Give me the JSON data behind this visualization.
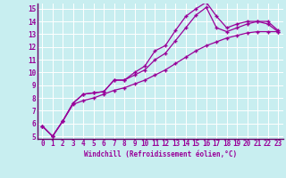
{
  "xlabel": "Windchill (Refroidissement éolien,°C)",
  "bg_color": "#c8eef0",
  "line_color": "#990099",
  "axis_line_color": "#660066",
  "grid_color": "#ffffff",
  "xlim": [
    -0.5,
    23.5
  ],
  "ylim": [
    4.8,
    15.4
  ],
  "yticks": [
    5,
    6,
    7,
    8,
    9,
    10,
    11,
    12,
    13,
    14,
    15
  ],
  "xticks": [
    0,
    1,
    2,
    3,
    4,
    5,
    6,
    7,
    8,
    9,
    10,
    11,
    12,
    13,
    14,
    15,
    16,
    17,
    18,
    19,
    20,
    21,
    22,
    23
  ],
  "series1_x": [
    0,
    1,
    2,
    3,
    4,
    5,
    6,
    7,
    8,
    9,
    10,
    11,
    12,
    13,
    14,
    15,
    16,
    17,
    18,
    19,
    20,
    21,
    22,
    23
  ],
  "series1_y": [
    5.8,
    5.0,
    6.2,
    7.6,
    8.3,
    8.4,
    8.5,
    9.4,
    9.4,
    10.0,
    10.5,
    11.7,
    12.1,
    13.3,
    14.4,
    15.0,
    15.5,
    14.4,
    13.5,
    13.8,
    14.0,
    14.0,
    14.0,
    13.3
  ],
  "series2_x": [
    0,
    1,
    2,
    3,
    4,
    5,
    6,
    7,
    8,
    9,
    10,
    11,
    12,
    13,
    14,
    15,
    16,
    17,
    18,
    19,
    20,
    21,
    22,
    23
  ],
  "series2_y": [
    5.8,
    5.0,
    6.2,
    7.6,
    8.3,
    8.4,
    8.5,
    9.4,
    9.4,
    9.8,
    10.2,
    11.0,
    11.5,
    12.5,
    13.5,
    14.5,
    15.1,
    13.5,
    13.2,
    13.5,
    13.8,
    14.0,
    13.8,
    13.2
  ],
  "series3_x": [
    0,
    1,
    2,
    3,
    4,
    5,
    6,
    7,
    8,
    9,
    10,
    11,
    12,
    13,
    14,
    15,
    16,
    17,
    18,
    19,
    20,
    21,
    22,
    23
  ],
  "series3_y": [
    5.8,
    5.0,
    6.2,
    7.5,
    7.8,
    8.0,
    8.3,
    8.6,
    8.8,
    9.1,
    9.4,
    9.8,
    10.2,
    10.7,
    11.2,
    11.7,
    12.1,
    12.4,
    12.7,
    12.9,
    13.1,
    13.2,
    13.2,
    13.2
  ],
  "xlabel_fontsize": 5.5,
  "tick_fontsize": 5.5
}
